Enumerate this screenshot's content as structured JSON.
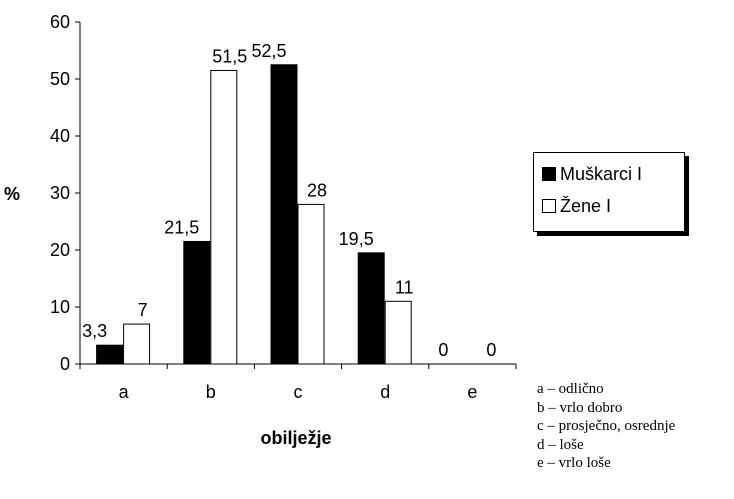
{
  "chart_data": {
    "type": "bar",
    "categories": [
      "a",
      "b",
      "c",
      "d",
      "e"
    ],
    "series": [
      {
        "name": "Muškarci I",
        "values": [
          3.3,
          21.5,
          52.5,
          19.5,
          0
        ],
        "labels": [
          "3,3",
          "21,5",
          "52,5",
          "19,5",
          "0"
        ],
        "color": "#000000"
      },
      {
        "name": "Žene I",
        "values": [
          7,
          51.5,
          28,
          11,
          0
        ],
        "labels": [
          "7",
          "51,5",
          "28",
          "11",
          "0"
        ],
        "color": "#ffffff"
      }
    ],
    "xlabel": "obilježje",
    "ylabel": "%",
    "ylim": [
      0,
      60
    ],
    "yticks": [
      "0",
      "10",
      "20",
      "30",
      "40",
      "50",
      "60"
    ],
    "grid": false,
    "legend_position": "right"
  },
  "legend": {
    "series1": "Muškarci I",
    "series2": "Žene I"
  },
  "category_key": [
    "a – odlično",
    "b – vrlo dobro",
    "c – prosječno, osrednje",
    "d – loše",
    "e – vrlo loše"
  ],
  "colors": {
    "bar_dark": "#000000",
    "bar_light": "#ffffff",
    "outline": "#000000"
  }
}
